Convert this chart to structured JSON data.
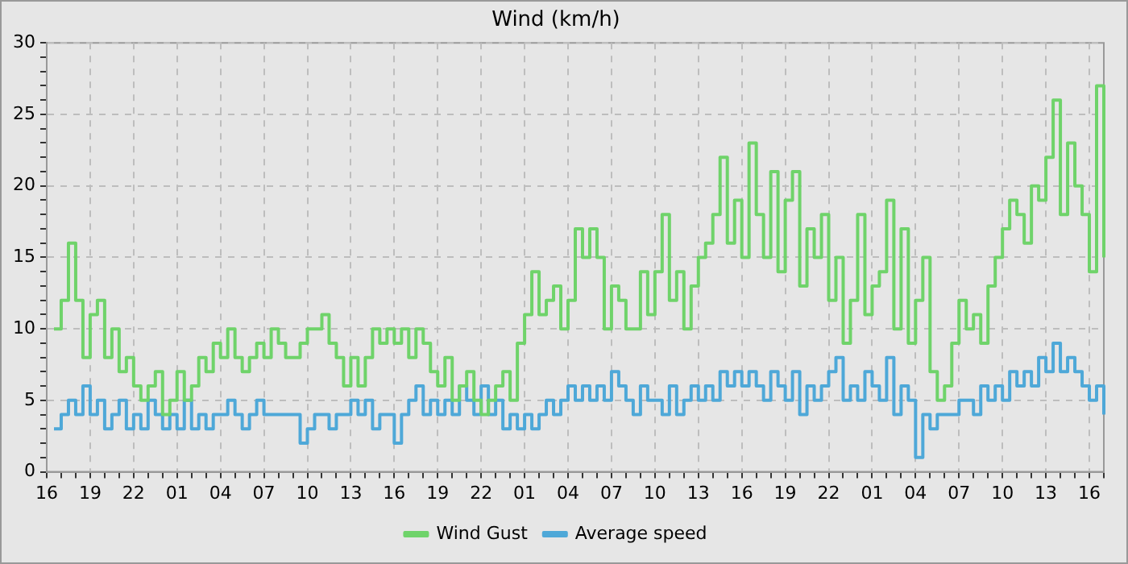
{
  "chart_data": {
    "type": "step",
    "title": "Wind (km/h)",
    "ylim": [
      0,
      30
    ],
    "yticks": [
      0,
      {
        "value": 1,
        "label": null
      },
      {
        "value": 2,
        "label": null
      },
      {
        "value": 3,
        "label": null
      },
      {
        "value": 4,
        "label": null
      },
      5,
      {
        "value": 6,
        "label": null
      },
      {
        "value": 7,
        "label": null
      },
      {
        "value": 8,
        "label": null
      },
      {
        "value": 9,
        "label": null
      },
      10,
      {
        "value": 11,
        "label": null
      },
      {
        "value": 12,
        "label": null
      },
      {
        "value": 13,
        "label": null
      },
      {
        "value": 14,
        "label": null
      },
      15,
      {
        "value": 16,
        "label": null
      },
      {
        "value": 17,
        "label": null
      },
      {
        "value": 18,
        "label": null
      },
      {
        "value": 19,
        "label": null
      },
      20,
      {
        "value": 21,
        "label": null
      },
      {
        "value": 22,
        "label": null
      },
      {
        "value": 23,
        "label": null
      },
      {
        "value": 24,
        "label": null
      },
      25,
      {
        "value": 26,
        "label": null
      },
      {
        "value": 27,
        "label": null
      },
      {
        "value": 28,
        "label": null
      },
      {
        "value": 29,
        "label": null
      },
      30
    ],
    "categories": [
      "16",
      null,
      null,
      null,
      null,
      null,
      "19",
      null,
      null,
      null,
      null,
      null,
      "22",
      null,
      null,
      null,
      null,
      null,
      "01",
      null,
      null,
      null,
      null,
      null,
      "04",
      null,
      null,
      null,
      null,
      null,
      "07",
      null,
      null,
      null,
      null,
      null,
      "10",
      null,
      null,
      null,
      null,
      null,
      "13",
      null,
      null,
      null,
      null,
      null,
      "16",
      null,
      null,
      null,
      null,
      null,
      "19",
      null,
      null,
      null,
      null,
      null,
      "22",
      null,
      null,
      null,
      null,
      null,
      "01",
      null,
      null,
      null,
      null,
      null,
      "04",
      null,
      null,
      null,
      null,
      null,
      "07",
      null,
      null,
      null,
      null,
      null,
      "10",
      null,
      null,
      null,
      null,
      null,
      "13",
      null,
      null,
      null,
      null,
      null,
      "16",
      null,
      null,
      null,
      null,
      null,
      "19",
      null,
      null,
      null,
      null,
      null,
      "22",
      null,
      null,
      null,
      null,
      null,
      "01",
      null,
      null,
      null,
      null,
      null,
      "04",
      null,
      null,
      null,
      null,
      null,
      "07",
      null,
      null,
      null,
      null,
      null,
      "10",
      null,
      null,
      null,
      null,
      null,
      "13",
      null,
      null,
      null,
      null,
      null,
      "16",
      null,
      null
    ],
    "series": [
      {
        "name": "Wind Gust",
        "color": "#6fd36a",
        "values": [
          null,
          10,
          12,
          16,
          12,
          8,
          11,
          12,
          8,
          10,
          7,
          8,
          6,
          5,
          6,
          7,
          4,
          5,
          7,
          5,
          6,
          8,
          7,
          9,
          8,
          10,
          8,
          7,
          8,
          9,
          8,
          10,
          9,
          8,
          8,
          9,
          10,
          10,
          11,
          9,
          8,
          6,
          8,
          6,
          8,
          10,
          9,
          10,
          9,
          10,
          8,
          10,
          9,
          7,
          6,
          8,
          5,
          6,
          7,
          5,
          4,
          5,
          6,
          7,
          5,
          9,
          11,
          14,
          11,
          12,
          13,
          10,
          12,
          17,
          15,
          17,
          15,
          10,
          13,
          12,
          10,
          10,
          14,
          11,
          14,
          18,
          12,
          14,
          10,
          13,
          15,
          16,
          18,
          22,
          16,
          19,
          15,
          23,
          18,
          15,
          21,
          14,
          19,
          21,
          13,
          17,
          15,
          18,
          12,
          15,
          9,
          12,
          18,
          11,
          13,
          14,
          19,
          10,
          17,
          9,
          12,
          15,
          7,
          5,
          6,
          9,
          12,
          10,
          11,
          9,
          13,
          15,
          17,
          19,
          18,
          16,
          20,
          19,
          22,
          26,
          18,
          23,
          20,
          18,
          14,
          27,
          15
        ]
      },
      {
        "name": "Average speed",
        "color": "#4ea8d8",
        "values": [
          null,
          3,
          4,
          5,
          4,
          6,
          4,
          5,
          3,
          4,
          5,
          3,
          4,
          3,
          5,
          4,
          3,
          4,
          3,
          5,
          3,
          4,
          3,
          4,
          4,
          5,
          4,
          3,
          4,
          5,
          4,
          4,
          4,
          4,
          4,
          2,
          3,
          4,
          4,
          3,
          4,
          4,
          5,
          4,
          5,
          3,
          4,
          4,
          2,
          4,
          5,
          6,
          4,
          5,
          4,
          5,
          4,
          6,
          5,
          4,
          6,
          4,
          5,
          3,
          4,
          3,
          4,
          3,
          4,
          5,
          4,
          5,
          6,
          5,
          6,
          5,
          6,
          5,
          7,
          6,
          5,
          4,
          6,
          5,
          5,
          4,
          6,
          4,
          5,
          6,
          5,
          6,
          5,
          7,
          6,
          7,
          6,
          7,
          6,
          5,
          7,
          6,
          5,
          7,
          4,
          6,
          5,
          6,
          7,
          8,
          5,
          6,
          5,
          7,
          6,
          5,
          8,
          4,
          6,
          5,
          1,
          4,
          3,
          4,
          4,
          4,
          5,
          5,
          4,
          6,
          5,
          6,
          5,
          7,
          6,
          7,
          6,
          8,
          7,
          9,
          7,
          8,
          7,
          6,
          5,
          6,
          4
        ]
      }
    ],
    "grid": true,
    "legend": "bottom"
  }
}
